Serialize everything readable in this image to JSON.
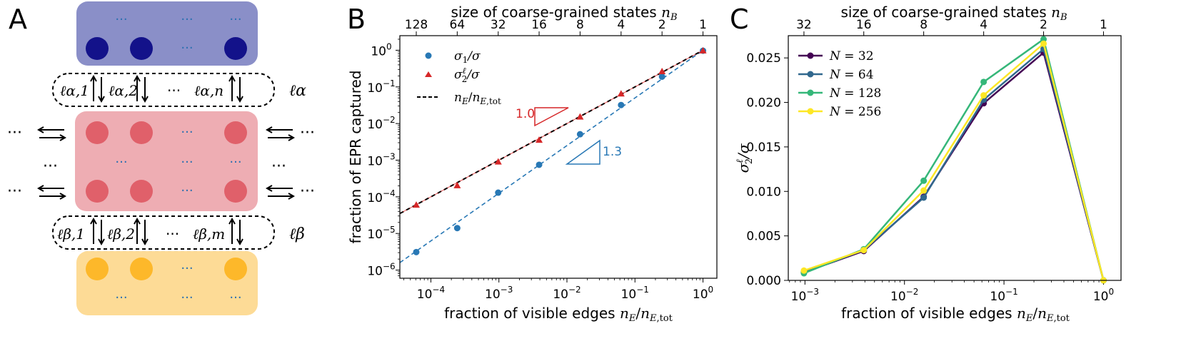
{
  "colors": {
    "blue_box": "#8a8fc8",
    "blue_dot": "#13128a",
    "red_box": "#eeadb3",
    "red_dot": "#e0606a",
    "yellow_box": "#fddb96",
    "yellow_dot": "#fdb82a",
    "ellipsis_blue": "#2a6fb0",
    "s1": "#2878b5",
    "s2": "#d62728",
    "n32": "#440154",
    "n64": "#31688e",
    "n128": "#35b779",
    "n256": "#fde725"
  },
  "panelA": {
    "label": "A",
    "dots": "···",
    "upper_edges": [
      "ℓα,1",
      "ℓα,2",
      "ℓα,n"
    ],
    "lower_edges": [
      "ℓβ,1",
      "ℓβ,2",
      "ℓβ,m"
    ],
    "upper_reservoir": "ℓα",
    "lower_reservoir": "ℓβ"
  },
  "panelB": {
    "label": "B",
    "triangle_labels": [
      "1.0",
      "1.3"
    ]
  },
  "panelC": {
    "label": "C"
  },
  "chart_data": [
    {
      "panel": "B",
      "type": "scatter",
      "xlabel": "fraction of visible edges n_E/n_E,tot",
      "ylabel": "fraction of EPR captured",
      "top_xlabel": "size of coarse-grained states n_B",
      "x_scale": "log",
      "y_scale": "log",
      "xlim": [
        3.5e-05,
        1.6
      ],
      "ylim": [
        6e-07,
        2.5
      ],
      "x_ticks": [
        "10^-4",
        "10^-3",
        "10^-2",
        "10^-1",
        "10^0"
      ],
      "y_ticks": [
        "10^-6",
        "10^-5",
        "10^-4",
        "10^-3",
        "10^-2",
        "10^-1",
        "10^0"
      ],
      "top_ticks": [
        {
          "label": "128",
          "x": 6.1e-05
        },
        {
          "label": "64",
          "x": 0.000244
        },
        {
          "label": "32",
          "x": 0.000977
        },
        {
          "label": "16",
          "x": 0.0039
        },
        {
          "label": "8",
          "x": 0.0156
        },
        {
          "label": "4",
          "x": 0.0625
        },
        {
          "label": "2",
          "x": 0.25
        },
        {
          "label": "1",
          "x": 1.0
        }
      ],
      "legend_position": "top-left",
      "series": [
        {
          "name": "σ1/σ",
          "marker": "circle",
          "color": "#2878b5",
          "x": [
            6.1e-05,
            0.000244,
            0.000977,
            0.0039,
            0.0156,
            0.0625,
            0.25,
            1.0
          ],
          "y": [
            3.1e-06,
            1.4e-05,
            0.00013,
            0.00075,
            0.0051,
            0.032,
            0.19,
            0.97
          ]
        },
        {
          "name": "σ2ℓ/σ",
          "marker": "triangle",
          "color": "#d62728",
          "x": [
            6.1e-05,
            0.000244,
            0.000977,
            0.0039,
            0.0156,
            0.0625,
            0.25,
            1.0
          ],
          "y": [
            5.9e-05,
            0.0002,
            0.00089,
            0.0035,
            0.015,
            0.064,
            0.26,
            0.96
          ]
        },
        {
          "name": "nE/nE,tot",
          "marker": "dashed-line",
          "color": "#000000",
          "x": [
            3.5e-05,
            1.0
          ],
          "y": [
            3.5e-05,
            1.0
          ]
        },
        {
          "name": "",
          "marker": "dashed-fit",
          "color": "#2878b5",
          "x": [
            3.5e-05,
            1.0
          ],
          "y": [
            1.6e-06,
            1.0
          ]
        }
      ]
    },
    {
      "panel": "C",
      "type": "line",
      "xlabel": "fraction of visible edges n_E/n_E,tot",
      "ylabel": "σ2ℓ/σ",
      "top_xlabel": "size of coarse-grained states n_B",
      "x_scale": "log",
      "xlim": [
        0.00068,
        1.5
      ],
      "ylim": [
        0,
        0.0275
      ],
      "x_ticks": [
        "10^-3",
        "10^-2",
        "10^-1",
        "10^0"
      ],
      "y_ticks": [
        "0.000",
        "0.005",
        "0.010",
        "0.015",
        "0.020",
        "0.025"
      ],
      "top_ticks": [
        {
          "label": "32",
          "x": 0.000977
        },
        {
          "label": "16",
          "x": 0.0039
        },
        {
          "label": "8",
          "x": 0.0156
        },
        {
          "label": "4",
          "x": 0.0625
        },
        {
          "label": "2",
          "x": 0.25
        },
        {
          "label": "1",
          "x": 1.0
        }
      ],
      "legend_position": "top-left",
      "x": [
        0.000977,
        0.0039,
        0.0156,
        0.0625,
        0.25,
        1.0
      ],
      "series": [
        {
          "name": "N = 32",
          "color": "#440154",
          "values": [
            0.0009,
            0.0033,
            0.0094,
            0.0199,
            0.0256,
            0.0
          ]
        },
        {
          "name": "N = 64",
          "color": "#31688e",
          "values": [
            0.0009,
            0.0034,
            0.0093,
            0.0203,
            0.026,
            0.0
          ]
        },
        {
          "name": "N = 128",
          "color": "#35b779",
          "values": [
            0.0008,
            0.0035,
            0.0112,
            0.0223,
            0.0271,
            0.0
          ]
        },
        {
          "name": "N = 256",
          "color": "#fde725",
          "values": [
            0.0011,
            0.0034,
            0.0101,
            0.0208,
            0.0266,
            0.0
          ]
        }
      ]
    }
  ]
}
